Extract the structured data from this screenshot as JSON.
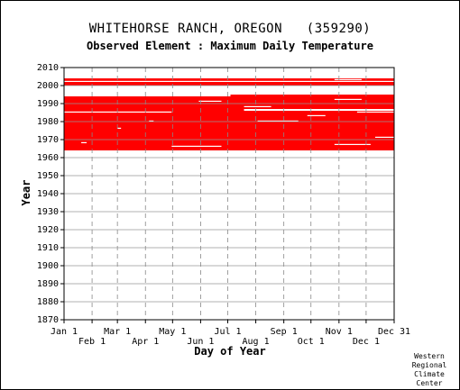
{
  "header": {
    "title": "WHITEHORSE RANCH, OREGON   (359290)",
    "subtitle": "Observed Element : Maximum Daily Temperature"
  },
  "footer": {
    "credit_lines": [
      "Western",
      "Regional",
      "Climate",
      "Center"
    ]
  },
  "chart_data": {
    "type": "heatmap",
    "title": "WHITEHORSE RANCH, OREGON   (359290)",
    "subtitle": "Observed Element : Maximum Daily Temperature",
    "xlabel": "Day of Year",
    "ylabel": "Year",
    "xlim": [
      1,
      366
    ],
    "ylim": [
      1870,
      2010
    ],
    "x_ticks_upper": [
      {
        "label": "Jan 1",
        "day": 1
      },
      {
        "label": "Mar 1",
        "day": 60
      },
      {
        "label": "May 1",
        "day": 121
      },
      {
        "label": "Jul 1",
        "day": 182
      },
      {
        "label": "Sep 1",
        "day": 244
      },
      {
        "label": "Nov 1",
        "day": 305
      },
      {
        "label": "Dec 31",
        "day": 366
      }
    ],
    "x_ticks_lower": [
      {
        "label": "Feb 1",
        "day": 32
      },
      {
        "label": "Apr 1",
        "day": 91
      },
      {
        "label": "Jun 1",
        "day": 152
      },
      {
        "label": "Aug 1",
        "day": 213
      },
      {
        "label": "Oct 1",
        "day": 274
      },
      {
        "label": "Dec 1",
        "day": 335
      }
    ],
    "y_ticks": [
      2010,
      2000,
      1990,
      1980,
      1970,
      1960,
      1950,
      1940,
      1930,
      1920,
      1910,
      1900,
      1890,
      1880,
      1870
    ],
    "grid": true,
    "color": "#ff0000",
    "data_blocks": [
      {
        "year_start": 1964,
        "year_end": 1986,
        "day_start": 1,
        "day_end": 366
      },
      {
        "year_start": 1986,
        "year_end": 1994,
        "day_start": 1,
        "day_end": 200
      },
      {
        "year_start": 1987,
        "year_end": 1995,
        "day_start": 185,
        "day_end": 366
      },
      {
        "year_start": 2000,
        "year_end": 2004,
        "day_start": 1,
        "day_end": 366
      }
    ],
    "gaps": [
      {
        "year": 1968,
        "day_start": 20,
        "day_end": 26
      },
      {
        "year": 1966,
        "day_start": 120,
        "day_end": 175
      },
      {
        "year": 1967,
        "day_start": 300,
        "day_end": 340
      },
      {
        "year": 1971,
        "day_start": 345,
        "day_end": 366
      },
      {
        "year": 1976,
        "day_start": 60,
        "day_end": 64
      },
      {
        "year": 1980,
        "day_start": 95,
        "day_end": 100
      },
      {
        "year": 1980,
        "day_start": 215,
        "day_end": 260
      },
      {
        "year": 1983,
        "day_start": 270,
        "day_end": 290
      },
      {
        "year": 1985,
        "day_start": 1,
        "day_end": 120
      },
      {
        "year": 1985,
        "day_start": 325,
        "day_end": 366
      },
      {
        "year": 1988,
        "day_start": 200,
        "day_end": 230
      },
      {
        "year": 1991,
        "day_start": 150,
        "day_end": 175
      },
      {
        "year": 1992,
        "day_start": 300,
        "day_end": 330
      },
      {
        "year": 1996,
        "day_start": 1,
        "day_end": 366
      },
      {
        "year": 1997,
        "day_start": 1,
        "day_end": 366
      },
      {
        "year": 1998,
        "day_start": 1,
        "day_end": 366
      },
      {
        "year": 1999,
        "day_start": 1,
        "day_end": 366
      },
      {
        "year": 2002,
        "day_start": 1,
        "day_end": 366
      },
      {
        "year": 2003,
        "day_start": 300,
        "day_end": 330
      }
    ]
  }
}
